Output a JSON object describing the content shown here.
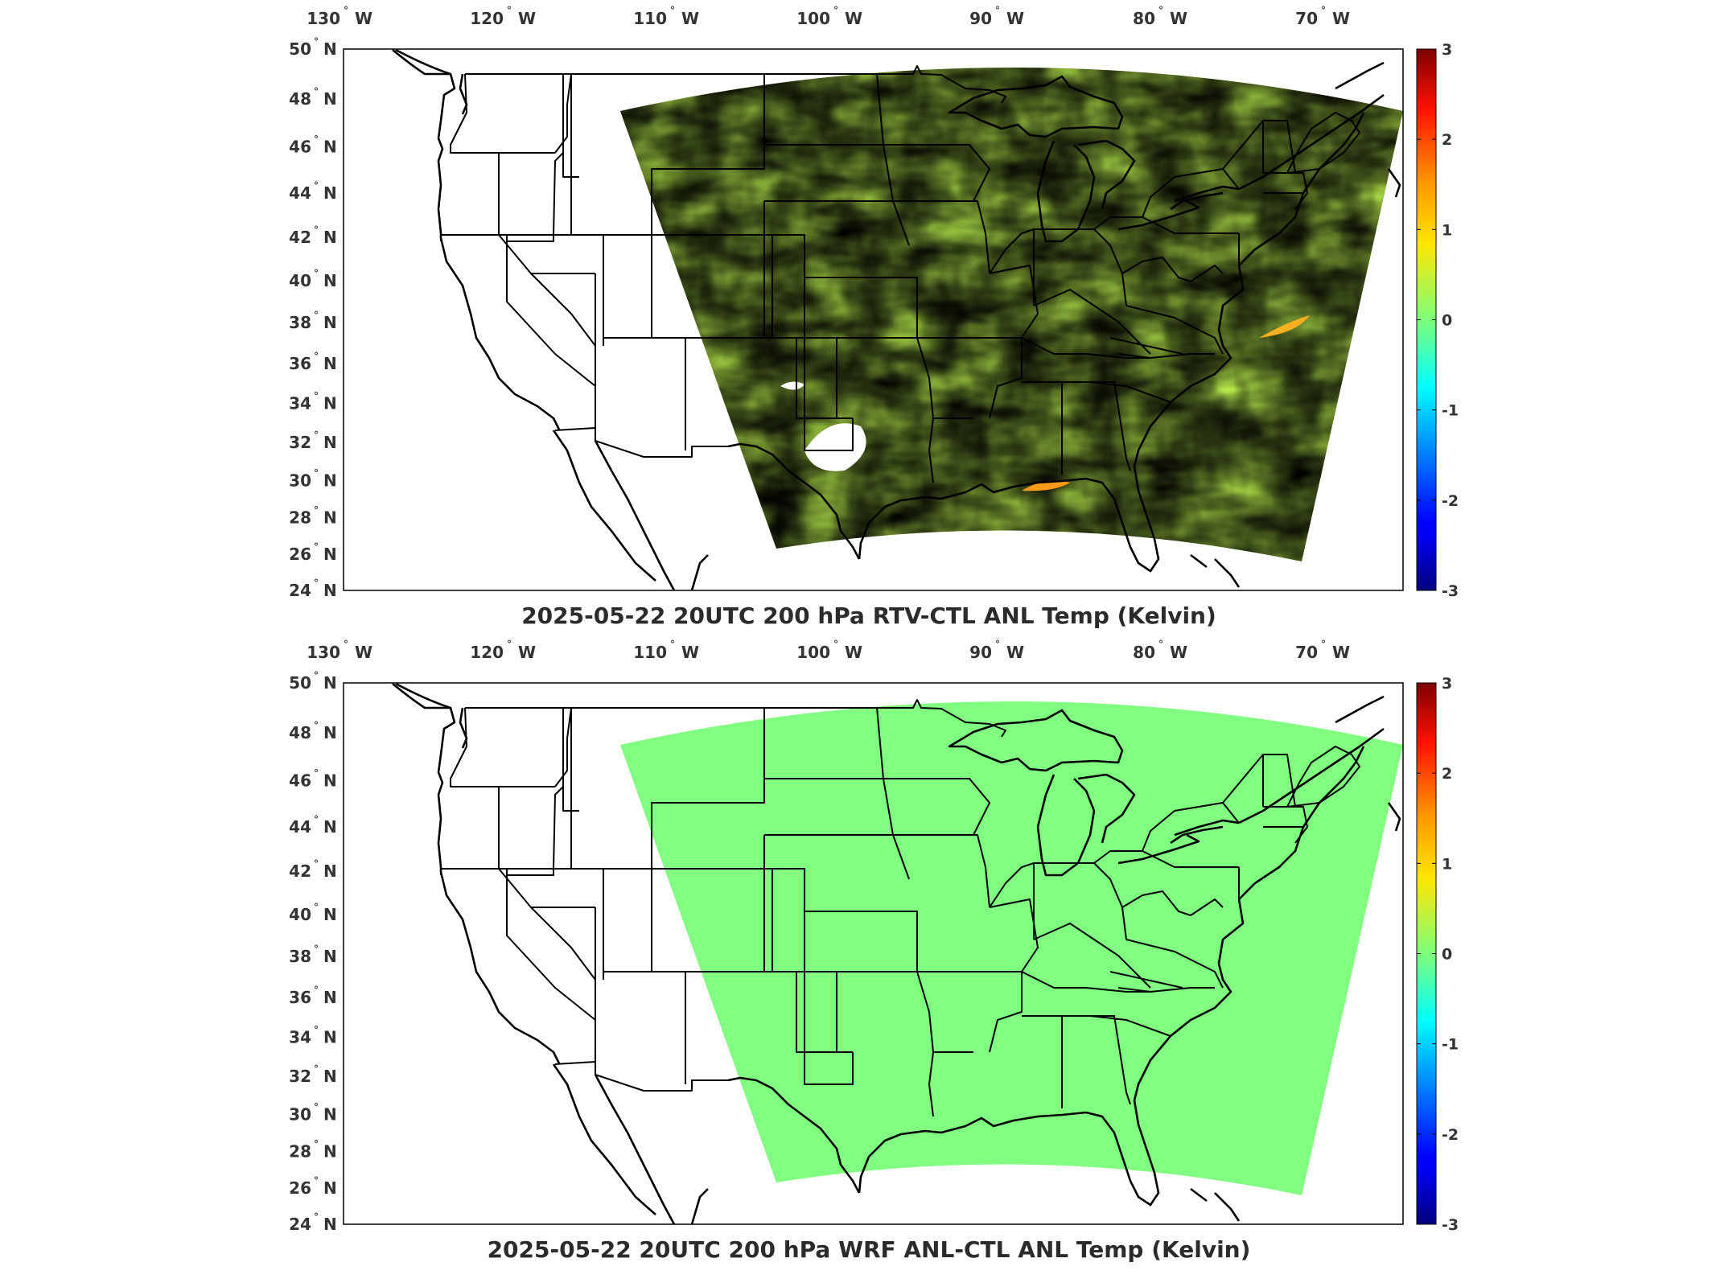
{
  "colors": {
    "rtv_field": "#b6ee4a",
    "rtv_cool": "#5ee6a8",
    "rtv_warm": "#ecef2c",
    "wrf_field": "#80ff80",
    "frame": "#000000"
  },
  "colorbar": {
    "range": [
      -3,
      3
    ],
    "tick_labels": [
      "3",
      "2",
      "1",
      "0",
      "-1",
      "-2",
      "-3"
    ],
    "colormap": "jet"
  },
  "lon_labels": [
    {
      "deg": "130",
      "hemi": "W"
    },
    {
      "deg": "120",
      "hemi": "W"
    },
    {
      "deg": "110",
      "hemi": "W"
    },
    {
      "deg": "100",
      "hemi": "W"
    },
    {
      "deg": "90",
      "hemi": "W"
    },
    {
      "deg": "80",
      "hemi": "W"
    },
    {
      "deg": "70",
      "hemi": "W"
    }
  ],
  "lat_labels": [
    {
      "deg": "50",
      "hemi": "N"
    },
    {
      "deg": "48",
      "hemi": "N"
    },
    {
      "deg": "46",
      "hemi": "N"
    },
    {
      "deg": "44",
      "hemi": "N"
    },
    {
      "deg": "42",
      "hemi": "N"
    },
    {
      "deg": "40",
      "hemi": "N"
    },
    {
      "deg": "38",
      "hemi": "N"
    },
    {
      "deg": "36",
      "hemi": "N"
    },
    {
      "deg": "34",
      "hemi": "N"
    },
    {
      "deg": "32",
      "hemi": "N"
    },
    {
      "deg": "30",
      "hemi": "N"
    },
    {
      "deg": "28",
      "hemi": "N"
    },
    {
      "deg": "26",
      "hemi": "N"
    },
    {
      "deg": "24",
      "hemi": "N"
    }
  ],
  "panels": [
    {
      "title": "2025-05-22 20UTC 200 hPa RTV-CTL ANL Temp (Kelvin)",
      "field_style": "rtv"
    },
    {
      "title": "2025-05-22 20UTC 200 hPa WRF ANL-CTL ANL Temp (Kelvin)",
      "field_style": "wrf"
    }
  ]
}
